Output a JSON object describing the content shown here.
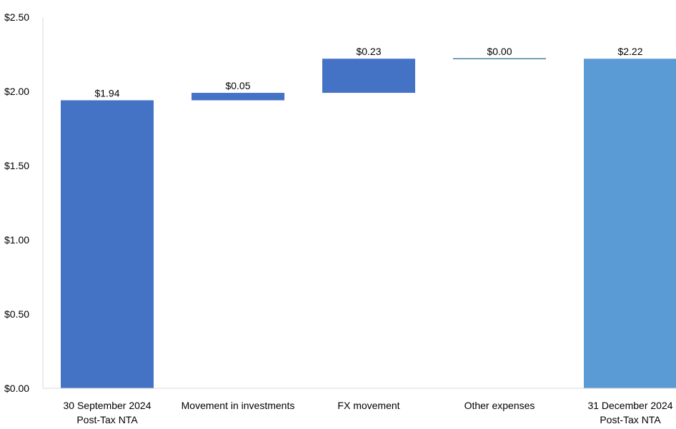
{
  "chart_data": {
    "type": "bar",
    "subtype": "waterfall",
    "title": "",
    "xlabel": "",
    "ylabel": "",
    "ylim": [
      0,
      2.5
    ],
    "y_ticks": [
      "$0.00",
      "$0.50",
      "$1.00",
      "$1.50",
      "$2.00",
      "$2.50"
    ],
    "y_tick_values": [
      0,
      0.5,
      1.0,
      1.5,
      2.0,
      2.5
    ],
    "grid": false,
    "legend": "none",
    "categories": [
      [
        "30 September 2024",
        "Post-Tax NTA"
      ],
      [
        "Movement in investments"
      ],
      [
        "FX movement"
      ],
      [
        "Other expenses"
      ],
      [
        "31 December 2024",
        "Post-Tax NTA"
      ]
    ],
    "bars": [
      {
        "kind": "total",
        "start": 0,
        "end": 1.94,
        "label": "$1.94",
        "color": "#4472C4"
      },
      {
        "kind": "delta",
        "start": 1.94,
        "end": 1.99,
        "label": "$0.05",
        "color": "#4472C4"
      },
      {
        "kind": "delta",
        "start": 1.99,
        "end": 2.22,
        "label": "$0.23",
        "color": "#4472C4"
      },
      {
        "kind": "delta",
        "start": 2.22,
        "end": 2.22,
        "label": "$0.00",
        "color": "#1F6E8C"
      },
      {
        "kind": "total",
        "start": 0,
        "end": 2.22,
        "label": "$2.22",
        "color": "#5B9BD5"
      }
    ]
  }
}
